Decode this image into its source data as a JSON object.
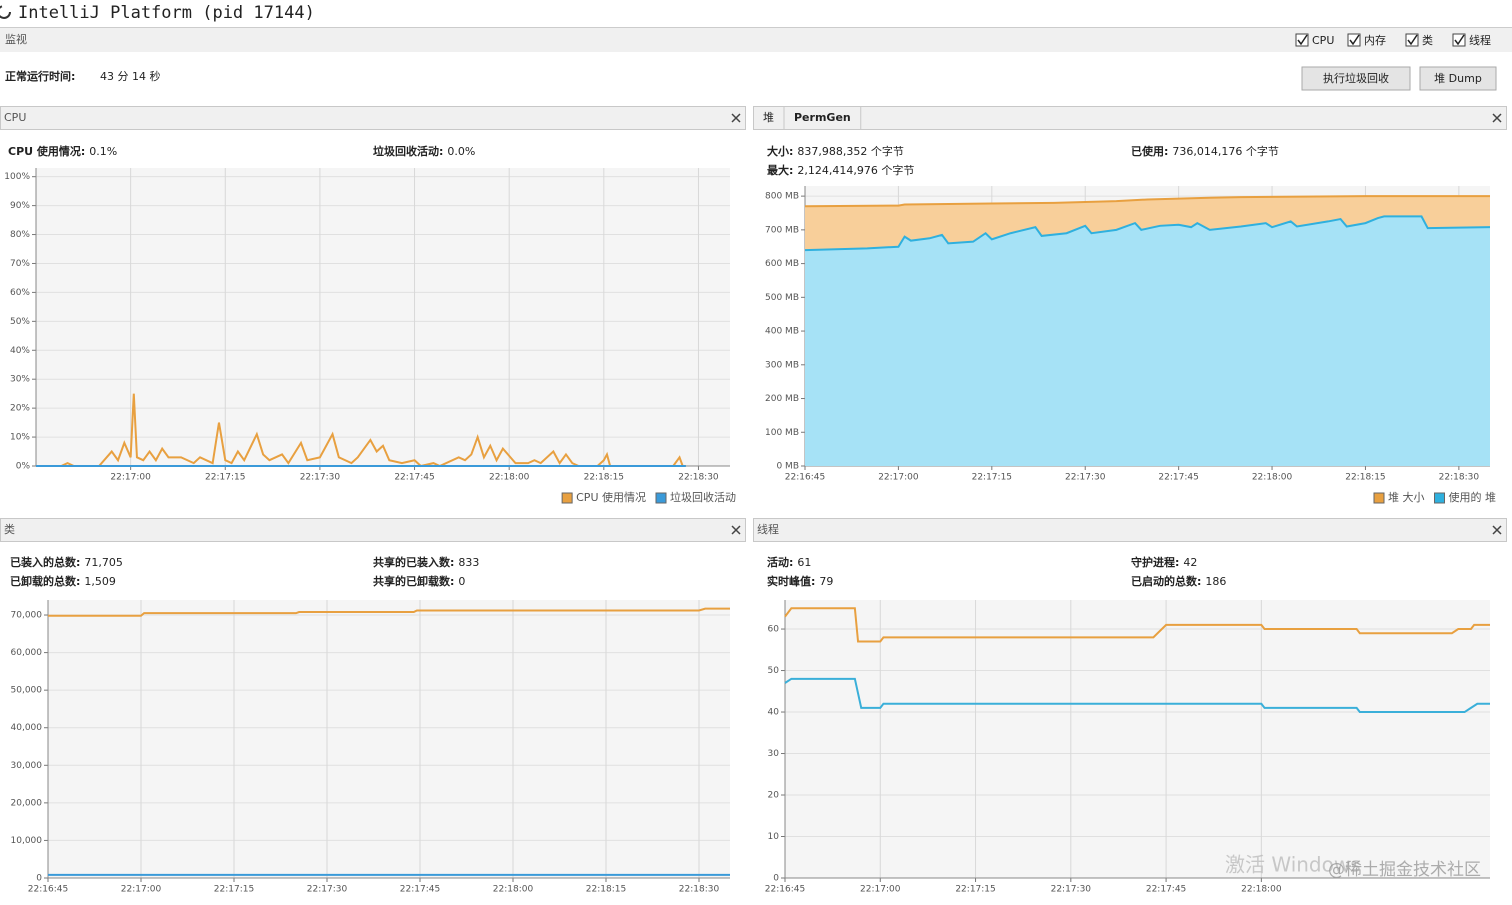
{
  "header": {
    "title": "IntelliJ Platform (pid 17144)",
    "tab": "监视",
    "checkboxes": [
      "CPU",
      "内存",
      "类",
      "线程"
    ],
    "uptime_label": "正常运行时间:",
    "uptime": "43 分 14 秒",
    "buttons": [
      "执行垃圾回收",
      "堆 Dump"
    ]
  },
  "panels": [
    {
      "title": "CPU",
      "stats": [
        [
          {
            "label": "CPU 使用情况:",
            "value": "0.1%"
          },
          {
            "label": "垃圾回收活动:",
            "value": "0.0%"
          }
        ]
      ],
      "chart": {
        "type": "line",
        "grid": true,
        "legend": "bottom-right",
        "xlim": [
          0,
          110
        ],
        "xticks": [
          {
            "value": 15,
            "label": "22:17:00"
          },
          {
            "value": 30,
            "label": "22:17:15"
          },
          {
            "value": 45,
            "label": "22:17:30"
          },
          {
            "value": 60,
            "label": "22:17:45"
          },
          {
            "value": 75,
            "label": "22:18:00"
          },
          {
            "value": 90,
            "label": "22:18:15"
          },
          {
            "value": 105,
            "label": "22:18:30"
          }
        ],
        "ylim": [
          0,
          103
        ],
        "yticks": [
          {
            "value": 0,
            "label": "0%"
          },
          {
            "value": 10,
            "label": "10%"
          },
          {
            "value": 20,
            "label": "20%"
          },
          {
            "value": 30,
            "label": "30%"
          },
          {
            "value": 40,
            "label": "40%"
          },
          {
            "value": 50,
            "label": "50%"
          },
          {
            "value": 60,
            "label": "60%"
          },
          {
            "value": 70,
            "label": "70%"
          },
          {
            "value": 80,
            "label": "80%"
          },
          {
            "value": 90,
            "label": "90%"
          },
          {
            "value": 100,
            "label": "100%"
          }
        ],
        "series": [
          {
            "name": "CPU 使用情况",
            "color": "#e8a040",
            "x": [
              0,
              4,
              5,
              6,
              10,
              12,
              13,
              14,
              15,
              15.5,
              16,
              17,
              18,
              19,
              20,
              21,
              23,
              25,
              26,
              28,
              29,
              30,
              31,
              32,
              33,
              35,
              36,
              37,
              39,
              40,
              42,
              43,
              45,
              47,
              48,
              50,
              51,
              53,
              54,
              55,
              56,
              58,
              60,
              61,
              63,
              64,
              67,
              68,
              69,
              70,
              71,
              72,
              73,
              74,
              76,
              78,
              79,
              80,
              82,
              83,
              84,
              85,
              86,
              89,
              90,
              90.5,
              91,
              101,
              102,
              102.5,
              103
            ],
            "values": [
              0,
              0,
              1,
              0,
              0,
              5,
              2,
              8,
              3,
              25,
              3,
              2,
              5,
              2,
              6,
              3,
              3,
              1,
              3,
              1,
              15,
              2,
              1,
              5,
              2,
              11,
              4,
              2,
              4,
              1,
              8,
              2,
              3,
              11,
              3,
              1,
              3,
              9,
              5,
              7,
              2,
              1,
              2,
              0,
              1,
              0,
              3,
              2,
              4,
              10,
              3,
              7,
              2,
              6,
              1,
              1,
              2,
              1,
              5,
              1,
              4,
              1,
              0,
              0,
              2,
              4,
              0,
              0,
              3,
              0,
              0
            ]
          },
          {
            "name": "垃圾回收活动",
            "color": "#3a9ad9",
            "x": [
              0,
              103
            ],
            "values": [
              0,
              0
            ]
          }
        ]
      }
    },
    {
      "tabs": [
        "堆",
        "PermGen"
      ],
      "stats": [
        [
          {
            "label": "大小:",
            "value": "837,988,352 个字节"
          },
          {
            "label": "已使用:",
            "value": "736,014,176 个字节"
          }
        ],
        [
          {
            "label": "最大:",
            "value": "2,124,414,976 个字节"
          }
        ]
      ],
      "chart": {
        "type": "area",
        "grid": true,
        "legend": "bottom-right",
        "xlim": [
          0,
          110
        ],
        "xticks": [
          {
            "value": 0,
            "label": "22:16:45"
          },
          {
            "value": 15,
            "label": "22:17:00"
          },
          {
            "value": 30,
            "label": "22:17:15"
          },
          {
            "value": 45,
            "label": "22:17:30"
          },
          {
            "value": 60,
            "label": "22:17:45"
          },
          {
            "value": 75,
            "label": "22:18:00"
          },
          {
            "value": 90,
            "label": "22:18:15"
          },
          {
            "value": 105,
            "label": "22:18:30"
          }
        ],
        "ylim": [
          0,
          830
        ],
        "yticks": [
          {
            "value": 0,
            "label": "0 MB"
          },
          {
            "value": 100,
            "label": "100 MB"
          },
          {
            "value": 200,
            "label": "200 MB"
          },
          {
            "value": 300,
            "label": "300 MB"
          },
          {
            "value": 400,
            "label": "400 MB"
          },
          {
            "value": 500,
            "label": "500 MB"
          },
          {
            "value": 600,
            "label": "600 MB"
          },
          {
            "value": 700,
            "label": "700 MB"
          },
          {
            "value": 800,
            "label": "800 MB"
          }
        ],
        "series": [
          {
            "name": "堆 大小",
            "color": "#e8a040",
            "fill": "#f8cf9a",
            "x": [
              0,
              15,
              16,
              30,
              40,
              50,
              55,
              65,
              70,
              90,
              110
            ],
            "values": [
              770,
              772,
              775,
              778,
              780,
              785,
              790,
              795,
              797,
              800,
              800
            ]
          },
          {
            "name": "使用的 堆",
            "color": "#2fb0de",
            "fill": "#a6e2f6",
            "x": [
              0,
              10,
              15,
              16,
              17,
              20,
              22,
              23,
              27,
              29,
              30,
              33,
              37,
              38,
              42,
              45,
              46,
              50,
              53,
              54,
              57,
              60,
              62,
              63,
              65,
              70,
              74,
              75,
              78,
              79,
              84,
              86,
              87,
              90,
              92,
              93,
              99,
              100,
              110
            ],
            "values": [
              640,
              645,
              650,
              680,
              668,
              675,
              685,
              660,
              665,
              690,
              672,
              690,
              708,
              682,
              690,
              712,
              690,
              700,
              720,
              700,
              712,
              715,
              708,
              720,
              700,
              710,
              720,
              708,
              725,
              710,
              725,
              732,
              710,
              720,
              735,
              740,
              740,
              705,
              708
            ]
          }
        ]
      }
    },
    {
      "title": "类",
      "stats": [
        [
          {
            "label": "已装入的总数:",
            "value": "71,705"
          },
          {
            "label": "共享的已装入数:",
            "value": "833"
          }
        ],
        [
          {
            "label": "已卸载的总数:",
            "value": "1,509"
          },
          {
            "label": "共享的已卸载数:",
            "value": "0"
          }
        ]
      ],
      "chart": {
        "type": "line",
        "grid": true,
        "xlim": [
          0,
          110
        ],
        "xticks": [
          {
            "value": 0,
            "label": "22:16:45"
          },
          {
            "value": 15,
            "label": "22:17:00"
          },
          {
            "value": 30,
            "label": "22:17:15"
          },
          {
            "value": 45,
            "label": "22:17:30"
          },
          {
            "value": 60,
            "label": "22:17:45"
          },
          {
            "value": 75,
            "label": "22:18:00"
          },
          {
            "value": 90,
            "label": "22:18:15"
          },
          {
            "value": 105,
            "label": "22:18:30"
          }
        ],
        "ylim": [
          0,
          74000
        ],
        "yticks": [
          0,
          {
            "value": 10000,
            "label": "10,000"
          },
          {
            "value": 20000,
            "label": "20,000"
          },
          {
            "value": 30000,
            "label": "30,000"
          },
          {
            "value": 40000,
            "label": "40,000"
          },
          {
            "value": 50000,
            "label": "50,000"
          },
          {
            "value": 60000,
            "label": "60,000"
          },
          {
            "value": 70000,
            "label": "70,000"
          }
        ],
        "series": [
          {
            "color": "#e8a040",
            "x": [
              0,
              15,
              15.5,
              40,
              40.5,
              59,
              59.5,
              105,
              106,
              110
            ],
            "values": [
              69800,
              69800,
              70500,
              70500,
              70800,
              70800,
              71200,
              71200,
              71700,
              71700
            ]
          },
          {
            "color": "#3a9ad9",
            "x": [
              0,
              110
            ],
            "values": [
              833,
              833
            ]
          }
        ]
      }
    },
    {
      "title": "线程",
      "stats": [
        [
          {
            "label": "活动:",
            "value": "61"
          },
          {
            "label": "守护进程:",
            "value": "42"
          }
        ],
        [
          {
            "label": "实时峰值:",
            "value": "79"
          },
          {
            "label": "已启动的总数:",
            "value": "186"
          }
        ]
      ],
      "chart": {
        "type": "line",
        "grid": true,
        "xlim": [
          0,
          111
        ],
        "xticks": [
          {
            "value": 0,
            "label": "22:16:45"
          },
          {
            "value": 15,
            "label": "22:17:00"
          },
          {
            "value": 30,
            "label": "22:17:15"
          },
          {
            "value": 45,
            "label": "22:17:30"
          },
          {
            "value": 60,
            "label": "22:17:45"
          },
          {
            "value": 75,
            "label": "22:18:00"
          }
        ],
        "ylim": [
          0,
          67
        ],
        "yticks": [
          0,
          10,
          20,
          30,
          40,
          50,
          60
        ],
        "series": [
          {
            "color": "#e8a040",
            "x": [
              0,
              1,
              11,
              11.5,
              15,
              15.5,
              58,
              60,
              75,
              75.5,
              90,
              90.5,
              105,
              106,
              108,
              108.5,
              111
            ],
            "values": [
              63,
              65,
              65,
              57,
              57,
              58,
              58,
              61,
              61,
              60,
              60,
              59,
              59,
              60,
              60,
              61,
              61
            ]
          },
          {
            "color": "#3aafd9",
            "x": [
              0,
              1,
              11,
              12,
              15,
              15.5,
              75,
              75.5,
              90,
              90.5,
              107,
              108,
              109,
              111
            ],
            "values": [
              47,
              48,
              48,
              41,
              41,
              42,
              42,
              41,
              41,
              40,
              40,
              41,
              42,
              42
            ]
          }
        ]
      }
    }
  ],
  "watermark": [
    "激活 Windows",
    "@稀土掘金技术社区"
  ]
}
